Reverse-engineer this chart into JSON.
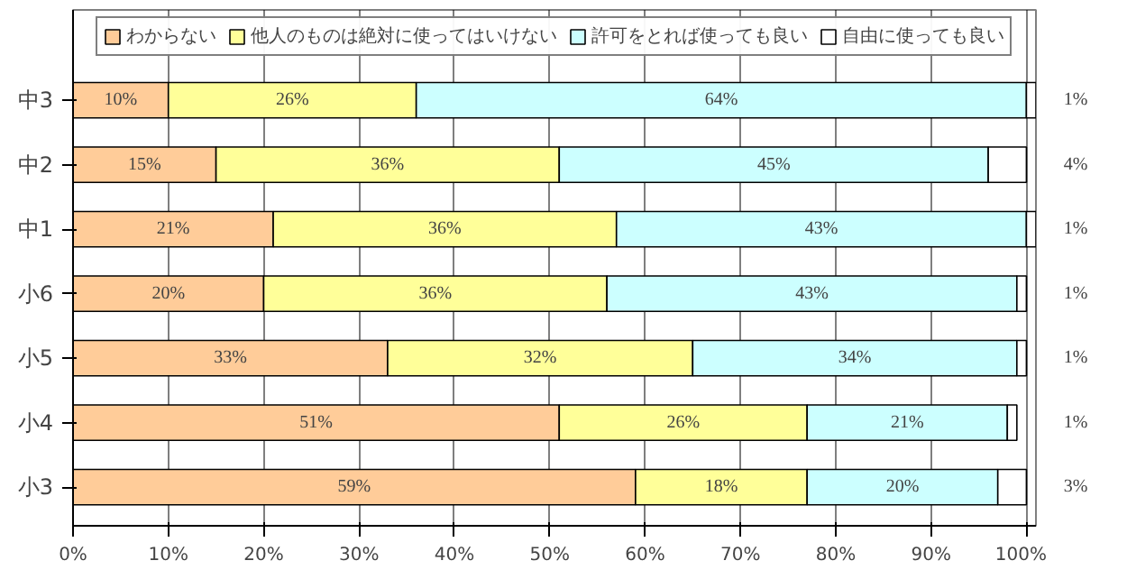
{
  "chart_data": {
    "type": "bar",
    "orientation": "horizontal",
    "stacked": true,
    "categories": [
      "中3",
      "中2",
      "中1",
      "小6",
      "小5",
      "小4",
      "小3"
    ],
    "series": [
      {
        "name": "わからない",
        "color": "#ffcc99",
        "values": [
          10,
          15,
          21,
          20,
          33,
          51,
          59
        ]
      },
      {
        "name": "他人のものは絶対に使ってはいけない",
        "color": "#ffff99",
        "values": [
          26,
          36,
          36,
          36,
          32,
          26,
          18
        ]
      },
      {
        "name": "許可をとれば使っても良い",
        "color": "#ccffff",
        "values": [
          64,
          45,
          43,
          43,
          34,
          21,
          20
        ]
      },
      {
        "name": "自由に使っても良い",
        "color": "#ffffff",
        "values": [
          1,
          4,
          1,
          1,
          1,
          1,
          3
        ]
      }
    ],
    "xlim": [
      0,
      101
    ],
    "xticks": [
      {
        "value": 0,
        "label": "0%"
      },
      {
        "value": 10,
        "label": "10%"
      },
      {
        "value": 20,
        "label": "20%"
      },
      {
        "value": 30,
        "label": "30%"
      },
      {
        "value": 40,
        "label": "40%"
      },
      {
        "value": 50,
        "label": "50%"
      },
      {
        "value": 60,
        "label": "60%"
      },
      {
        "value": 70,
        "label": "70%"
      },
      {
        "value": 80,
        "label": "80%"
      },
      {
        "value": 90,
        "label": "90%"
      },
      {
        "value": 100,
        "label": "100%"
      }
    ],
    "value_labels": [
      [
        "10%",
        "15%",
        "21%",
        "20%",
        "33%",
        "51%",
        "59%"
      ],
      [
        "26%",
        "36%",
        "36%",
        "36%",
        "32%",
        "26%",
        "18%"
      ],
      [
        "64%",
        "45%",
        "43%",
        "43%",
        "34%",
        "21%",
        "20%"
      ],
      [
        "1%",
        "4%",
        "1%",
        "1%",
        "1%",
        "1%",
        "3%"
      ]
    ],
    "grid": "x",
    "legend": "top"
  }
}
